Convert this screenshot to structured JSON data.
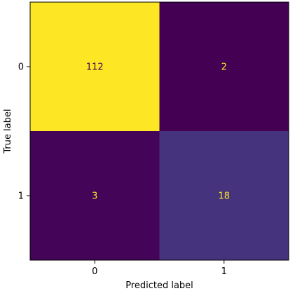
{
  "chart_data": {
    "type": "heatmap",
    "title": "",
    "xlabel": "Predicted label",
    "ylabel": "True label",
    "x_categories": [
      "0",
      "1"
    ],
    "y_categories": [
      "0",
      "1"
    ],
    "values": [
      [
        112,
        2
      ],
      [
        3,
        18
      ]
    ],
    "colormap": "viridis",
    "value_range": [
      2,
      112
    ],
    "grid": false,
    "colorbar": false,
    "colors": {
      "high": "#fde725",
      "low": "#440154",
      "mid_low": "#472d7b",
      "text_on_dark": "#fde725",
      "text_on_light": "#440154"
    }
  }
}
